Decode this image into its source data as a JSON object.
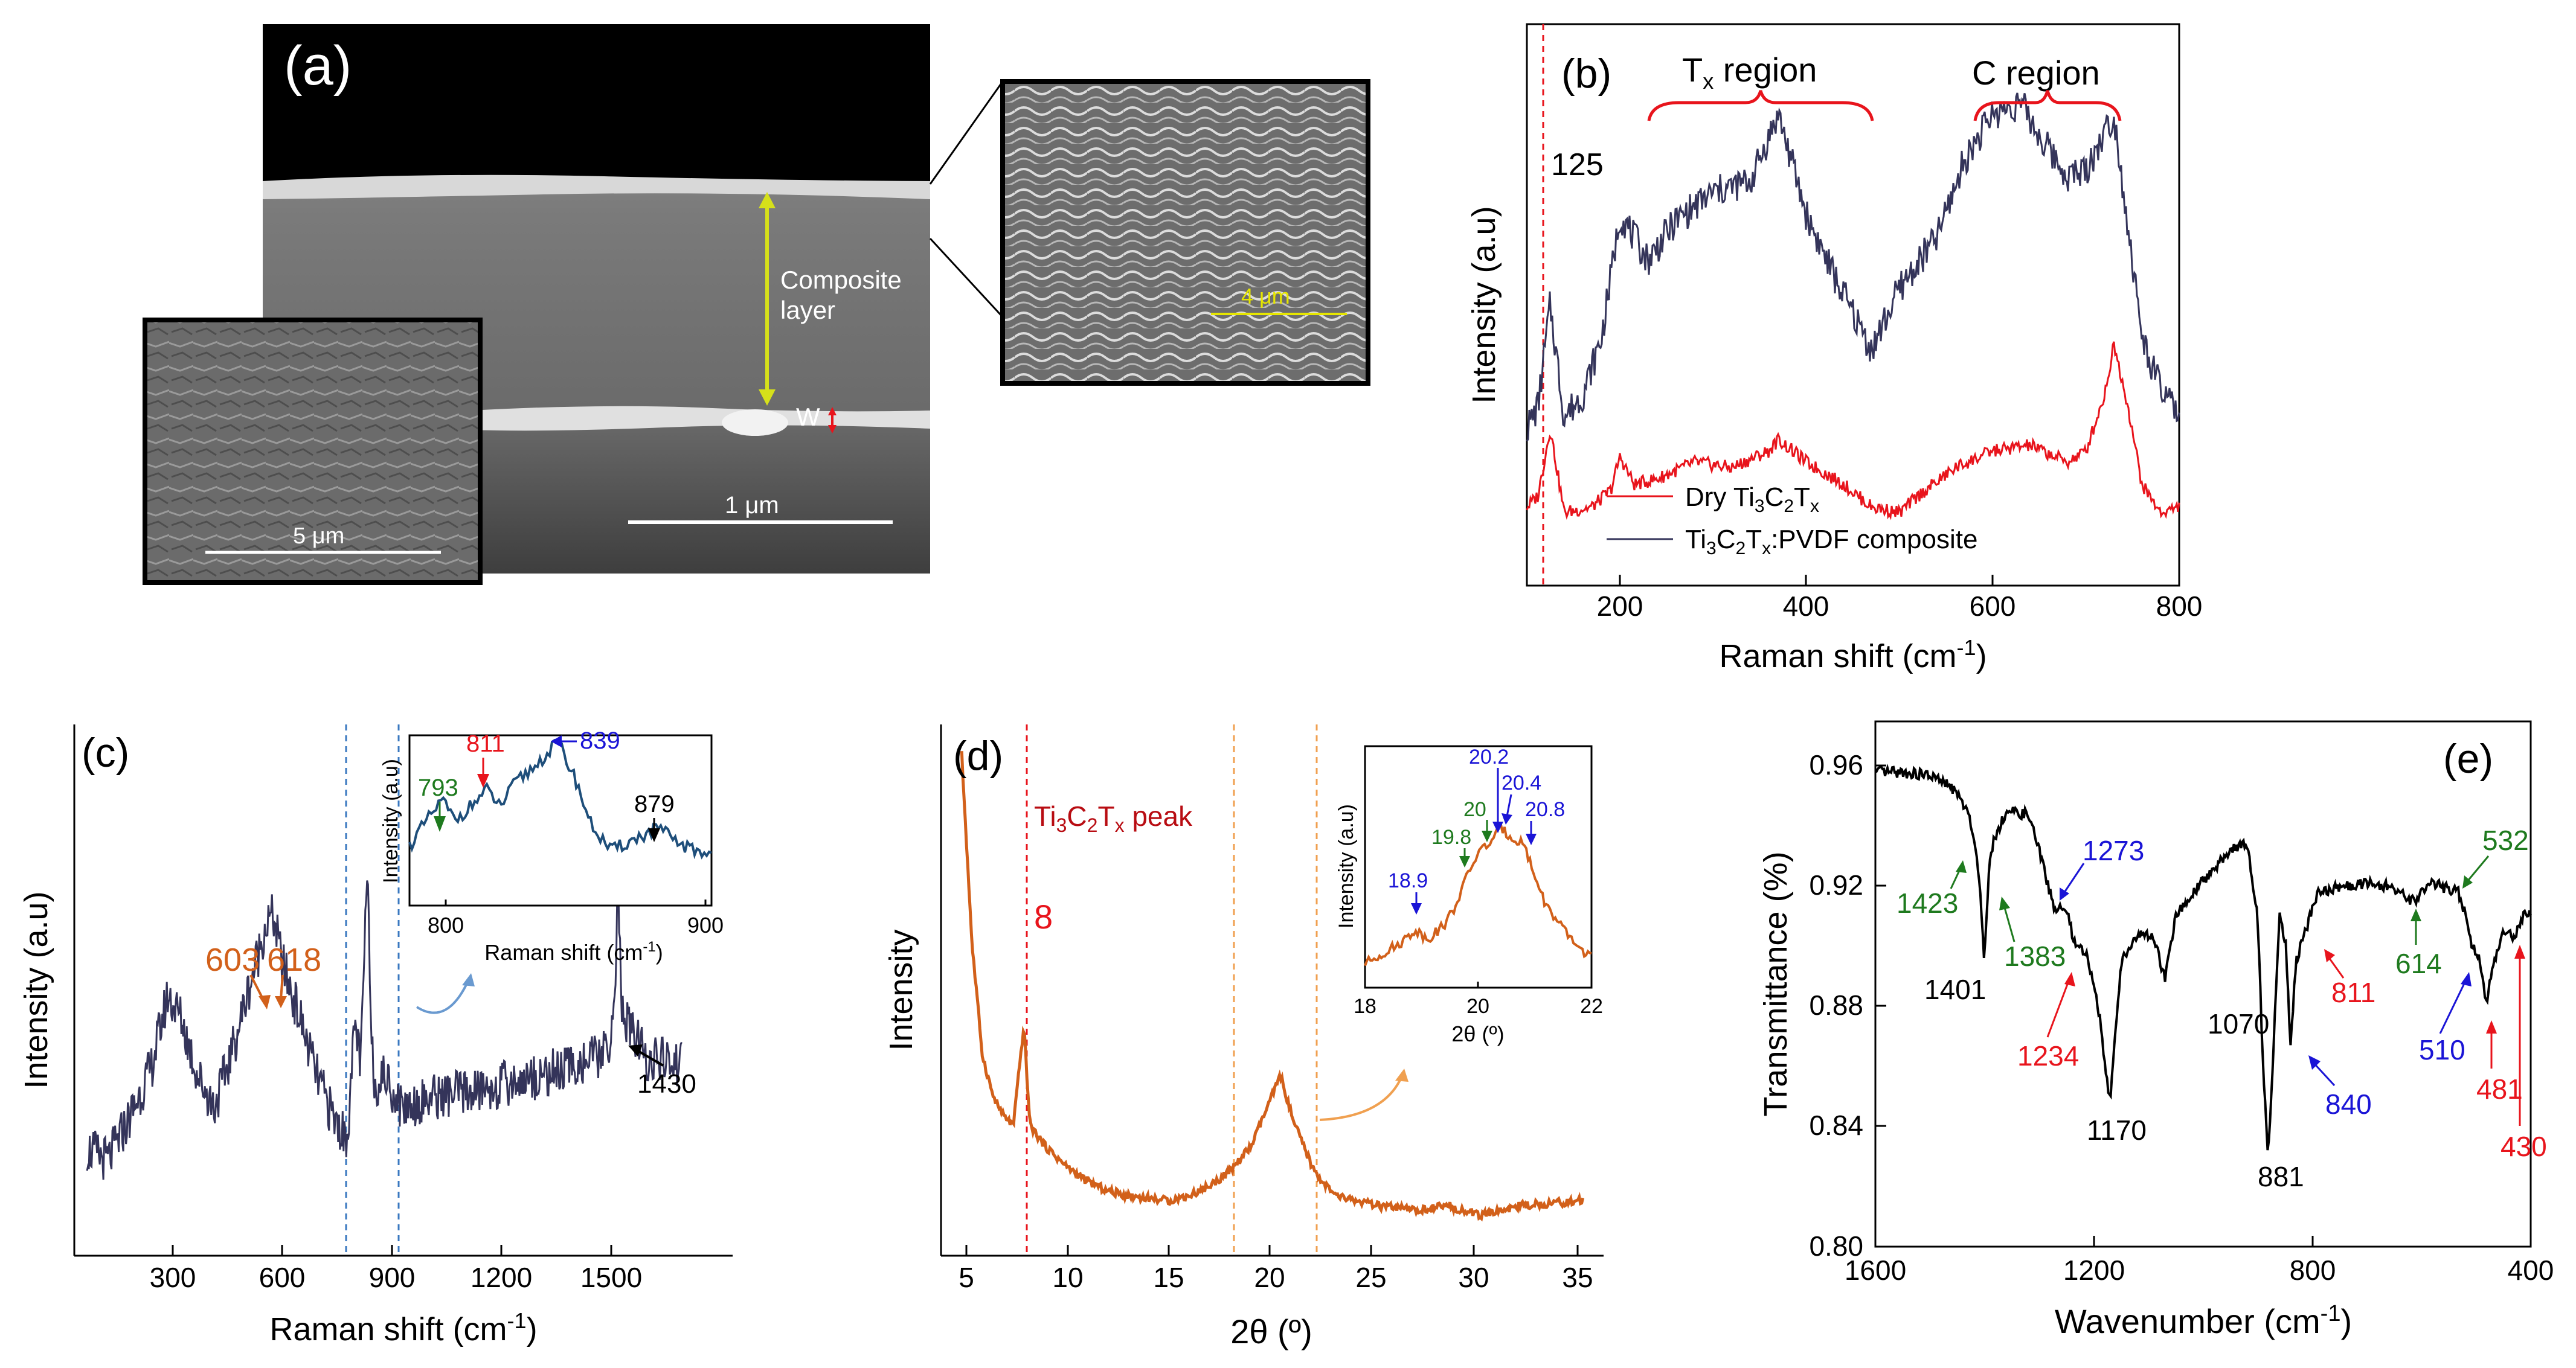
{
  "panel_a": {
    "label": "(a)",
    "annotation_composite": [
      "Composite",
      "layer"
    ],
    "annotation_w": "W",
    "scalebar_main": "1 μm",
    "scalebar_left_inset": "5 μm",
    "scalebar_right_inset": "4 μm"
  },
  "panel_b": {
    "label": "(b)",
    "region_tx": "Tx region",
    "region_c": "C region",
    "peak_label": "125",
    "xlabel": "Raman shift (cm-1)",
    "ylabel": "Intensity (a.u)",
    "legend": [
      "Dry Ti3C2Tx",
      "Ti3C2Tx:PVDF composite"
    ],
    "xticks": [
      "200",
      "400",
      "600",
      "800"
    ]
  },
  "panel_c": {
    "label": "(c)",
    "xlabel": "Raman shift (cm-1)",
    "ylabel": "Intensity (a.u)",
    "xticks": [
      "300",
      "600",
      "900",
      "1200",
      "1500"
    ],
    "peaks": [
      "603",
      "618",
      "1430"
    ],
    "inset": {
      "xlabel": "Raman shift (cm-1)",
      "ylabel": "Intensity (a.u)",
      "xticks": [
        "800",
        "900"
      ],
      "peaks": [
        "793",
        "811",
        "839",
        "879"
      ]
    }
  },
  "panel_d": {
    "label": "(d)",
    "xlabel": "2θ (º)",
    "ylabel": "Intensity",
    "peak_name": "Ti3C2Tx peak",
    "peak_value": "8",
    "xticks": [
      "5",
      "10",
      "15",
      "20",
      "25",
      "30",
      "35"
    ],
    "inset": {
      "xlabel": "2θ (º)",
      "ylabel": "Intensity (a.u)",
      "xticks": [
        "18",
        "20",
        "22"
      ],
      "peaks": [
        "18.9",
        "19.8",
        "20",
        "20.2",
        "20.4",
        "20.8"
      ]
    }
  },
  "panel_e": {
    "label": "(e)",
    "xlabel": "Wavenumber (cm-1)",
    "ylabel": "Transmittance (%)",
    "xticks": [
      "1600",
      "1200",
      "800",
      "400"
    ],
    "yticks": [
      "0.80",
      "0.84",
      "0.88",
      "0.92",
      "0.96"
    ],
    "peaks": [
      "1423",
      "1401",
      "1383",
      "1273",
      "1234",
      "1170",
      "1070",
      "881",
      "840",
      "811",
      "614",
      "532",
      "510",
      "481",
      "430"
    ]
  },
  "colors": {
    "red": "#e8141c",
    "navy": "#34345a",
    "blue": "#1a14d6",
    "green": "#1e7a1e",
    "orange": "#d2601a",
    "inset_blue": "#1e4e7a",
    "black": "#000000"
  },
  "chart_data": [
    {
      "type": "line",
      "panel": "(b)",
      "title": "",
      "xlabel": "Raman shift (cm-1)",
      "ylabel": "Intensity (a.u)",
      "xlim": [
        100,
        800
      ],
      "series": [
        {
          "name": "Dry Ti3C2Tx",
          "x": [
            100,
            112,
            125,
            140,
            170,
            190,
            200,
            215,
            240,
            280,
            320,
            360,
            370,
            400,
            440,
            470,
            500,
            520,
            560,
            600,
            640,
            680,
            700,
            720,
            730,
            745,
            760,
            780,
            800
          ],
          "y": [
            0.14,
            0.16,
            0.28,
            0.13,
            0.14,
            0.17,
            0.23,
            0.18,
            0.19,
            0.22,
            0.21,
            0.24,
            0.26,
            0.22,
            0.18,
            0.14,
            0.13,
            0.16,
            0.21,
            0.24,
            0.25,
            0.22,
            0.24,
            0.34,
            0.43,
            0.32,
            0.18,
            0.13,
            0.14
          ]
        },
        {
          "name": "Ti3C2Tx:PVDF composite",
          "x": [
            100,
            112,
            125,
            140,
            160,
            180,
            200,
            230,
            260,
            300,
            340,
            370,
            380,
            400,
            430,
            470,
            500,
            540,
            570,
            600,
            630,
            650,
            680,
            700,
            730,
            745,
            760,
            780,
            800
          ],
          "y": [
            0.28,
            0.32,
            0.5,
            0.3,
            0.34,
            0.44,
            0.66,
            0.58,
            0.65,
            0.7,
            0.72,
            0.84,
            0.78,
            0.66,
            0.55,
            0.42,
            0.53,
            0.62,
            0.76,
            0.84,
            0.86,
            0.8,
            0.73,
            0.74,
            0.84,
            0.64,
            0.44,
            0.35,
            0.3
          ]
        }
      ]
    },
    {
      "type": "line",
      "panel": "(c)",
      "title": "",
      "xlabel": "Raman shift (cm-1)",
      "ylabel": "Intensity (a.u)",
      "xlim": [
        150,
        1700
      ],
      "series": [
        {
          "name": "",
          "x": [
            180,
            230,
            280,
            330,
            370,
            400,
            440,
            480,
            520,
            560,
            600,
            618,
            640,
            680,
            720,
            760,
            790,
            800,
            811,
            825,
            839,
            855,
            880,
            920,
            1000,
            1100,
            1200,
            1300,
            1400,
            1420,
            1430,
            1440,
            1500,
            1580
          ],
          "y": [
            0.2,
            0.18,
            0.26,
            0.35,
            0.49,
            0.45,
            0.34,
            0.28,
            0.38,
            0.5,
            0.62,
            0.64,
            0.55,
            0.45,
            0.34,
            0.26,
            0.22,
            0.3,
            0.44,
            0.36,
            0.72,
            0.32,
            0.34,
            0.28,
            0.3,
            0.31,
            0.33,
            0.35,
            0.38,
            0.44,
            0.7,
            0.45,
            0.37,
            0.36
          ]
        }
      ]
    },
    {
      "type": "line",
      "panel": "(c) inset",
      "title": "",
      "xlabel": "Raman shift (cm-1)",
      "ylabel": "Intensity (a.u)",
      "xlim": [
        780,
        900
      ],
      "series": [
        {
          "name": "",
          "x": [
            780,
            786,
            793,
            798,
            804,
            811,
            816,
            822,
            830,
            839,
            846,
            852,
            860,
            868,
            874,
            879,
            885,
            892,
            900
          ],
          "y": [
            0.35,
            0.48,
            0.62,
            0.5,
            0.58,
            0.68,
            0.58,
            0.72,
            0.82,
            0.96,
            0.74,
            0.48,
            0.32,
            0.38,
            0.42,
            0.46,
            0.38,
            0.33,
            0.3
          ]
        }
      ]
    },
    {
      "type": "line",
      "panel": "(d)",
      "title": "",
      "xlabel": "2θ (º)",
      "ylabel": "Intensity",
      "xlim": [
        4,
        36
      ],
      "series": [
        {
          "name": "",
          "x": [
            5,
            5.5,
            6,
            6.5,
            7,
            7.5,
            8,
            8.3,
            9,
            10,
            11,
            12,
            13,
            14,
            15,
            16,
            17,
            18,
            19,
            19.8,
            20.4,
            21,
            22,
            23,
            25,
            27,
            28.5,
            30,
            32,
            35
          ],
          "y": [
            1.0,
            0.62,
            0.4,
            0.32,
            0.28,
            0.26,
            0.46,
            0.26,
            0.22,
            0.18,
            0.15,
            0.13,
            0.12,
            0.115,
            0.11,
            0.12,
            0.14,
            0.17,
            0.22,
            0.3,
            0.36,
            0.27,
            0.17,
            0.12,
            0.1,
            0.09,
            0.1,
            0.08,
            0.1,
            0.11
          ]
        }
      ]
    },
    {
      "type": "line",
      "panel": "(d) inset",
      "title": "",
      "xlabel": "2θ (º)",
      "ylabel": "Intensity (a.u)",
      "xlim": [
        18,
        22
      ],
      "series": [
        {
          "name": "",
          "x": [
            18,
            18.3,
            18.6,
            18.9,
            19.1,
            19.4,
            19.6,
            19.8,
            20.0,
            20.2,
            20.4,
            20.6,
            20.8,
            21.0,
            21.2,
            21.5,
            21.8,
            22
          ],
          "y": [
            0.1,
            0.14,
            0.18,
            0.24,
            0.2,
            0.26,
            0.34,
            0.46,
            0.56,
            0.6,
            0.66,
            0.62,
            0.6,
            0.46,
            0.34,
            0.24,
            0.16,
            0.13
          ]
        }
      ]
    },
    {
      "type": "line",
      "panel": "(e)",
      "title": "",
      "xlabel": "Wavenumber (cm-1)",
      "ylabel": "Transmittance (%)",
      "xlim": [
        1600,
        400
      ],
      "ylim": [
        0.8,
        0.975
      ],
      "series": [
        {
          "name": "",
          "x": [
            1600,
            1550,
            1500,
            1460,
            1440,
            1423,
            1410,
            1401,
            1392,
            1383,
            1360,
            1320,
            1300,
            1273,
            1250,
            1234,
            1215,
            1195,
            1170,
            1150,
            1120,
            1090,
            1070,
            1050,
            1000,
            950,
            920,
            900,
            890,
            881,
            870,
            860,
            848,
            840,
            830,
            811,
            790,
            750,
            700,
            660,
            614,
            580,
            532,
            515,
            510,
            495,
            481,
            468,
            450,
            430,
            415,
            400
          ],
          "y": [
            0.958,
            0.958,
            0.957,
            0.953,
            0.948,
            0.94,
            0.924,
            0.896,
            0.926,
            0.936,
            0.945,
            0.944,
            0.932,
            0.913,
            0.912,
            0.9,
            0.898,
            0.884,
            0.848,
            0.895,
            0.904,
            0.903,
            0.889,
            0.91,
            0.922,
            0.932,
            0.935,
            0.91,
            0.86,
            0.83,
            0.87,
            0.912,
            0.9,
            0.865,
            0.895,
            0.906,
            0.918,
            0.92,
            0.921,
            0.92,
            0.915,
            0.921,
            0.918,
            0.908,
            0.902,
            0.896,
            0.881,
            0.895,
            0.905,
            0.903,
            0.91,
            0.912
          ]
        }
      ]
    }
  ]
}
